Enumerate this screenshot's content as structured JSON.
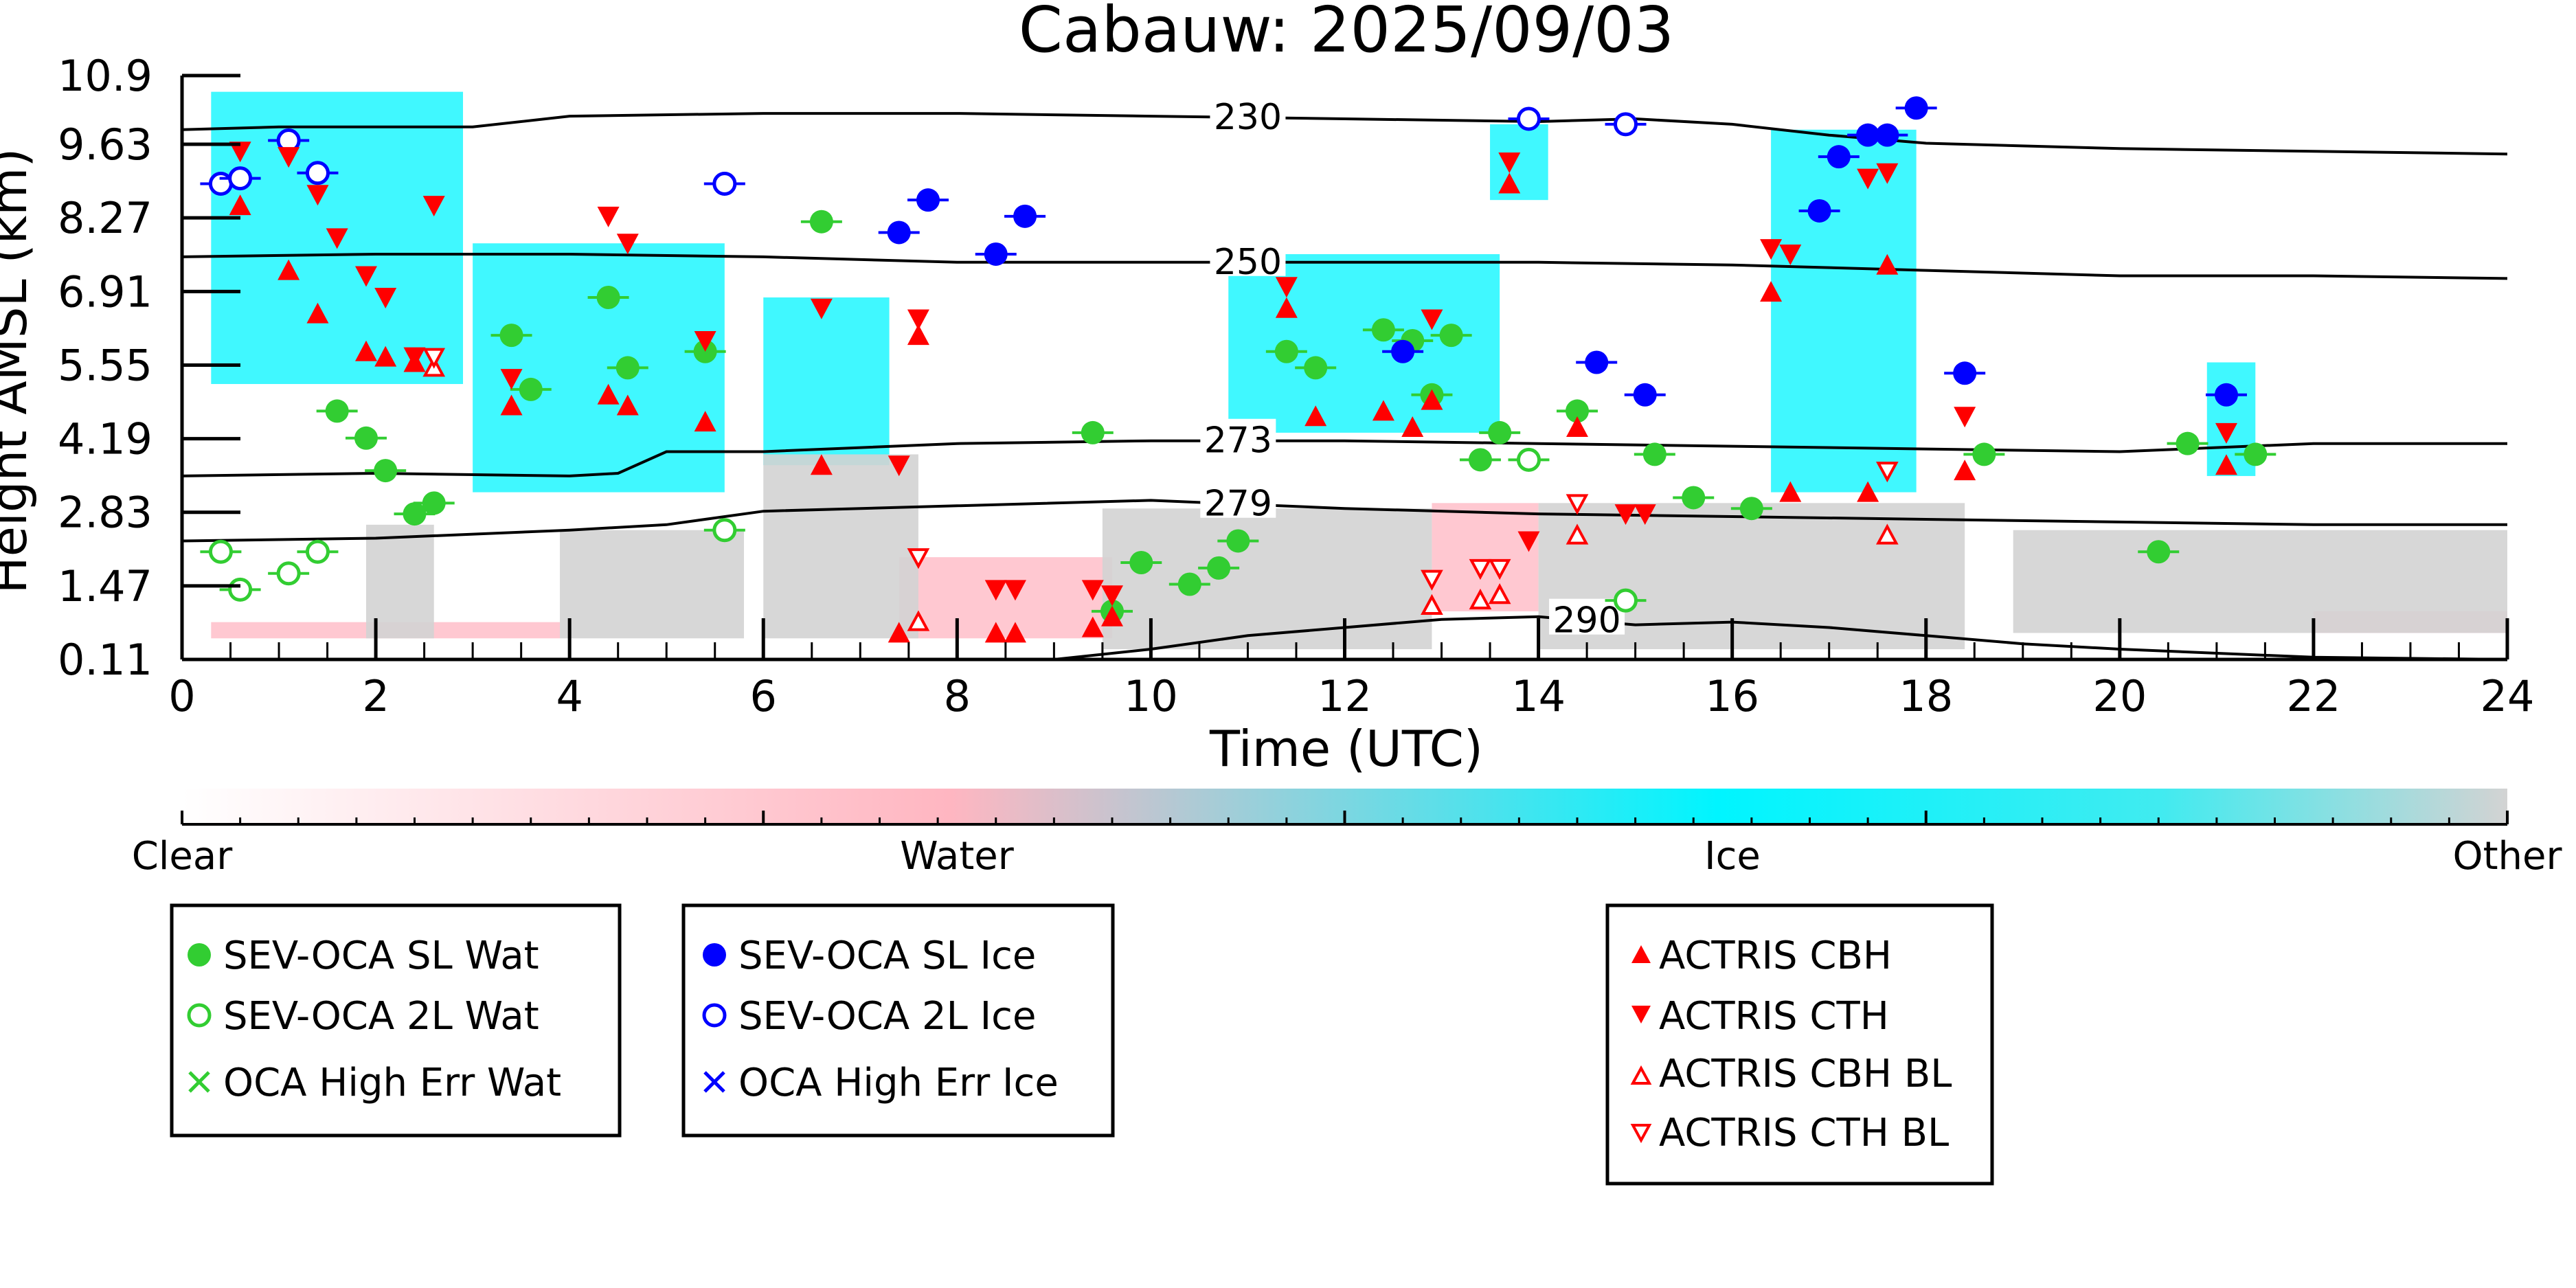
{
  "chart_data": {
    "type": "scatter",
    "title": "Cabauw: 2025/09/03",
    "xlabel": "Time (UTC)",
    "ylabel": "Height AMSL (km)",
    "xlim": [
      0,
      24
    ],
    "ylim": [
      0.11,
      10.9
    ],
    "xticks": [
      0,
      2,
      4,
      6,
      8,
      10,
      12,
      14,
      16,
      18,
      20,
      22,
      24
    ],
    "yticks": [
      "0.11",
      "1.47",
      "2.83",
      "4.19",
      "5.55",
      "6.91",
      "8.27",
      "9.63",
      "10.9"
    ],
    "colorbar": {
      "labels": [
        "Clear",
        "Water",
        "Ice",
        "Other"
      ],
      "colors": [
        "#ffffff",
        "#ffb6c1",
        "#00f5ff",
        "#d3d3d3"
      ]
    },
    "isotherms": [
      {
        "label": "230",
        "x": [
          0,
          1,
          3,
          4,
          6,
          8,
          10,
          12,
          14,
          15,
          16,
          17,
          18,
          20,
          22,
          24
        ],
        "y": [
          9.9,
          9.95,
          9.95,
          10.15,
          10.2,
          10.2,
          10.15,
          10.1,
          10.05,
          10.1,
          10.0,
          9.8,
          9.65,
          9.55,
          9.5,
          9.45
        ]
      },
      {
        "label": "250",
        "x": [
          0,
          2,
          4,
          6,
          8,
          10,
          12,
          14,
          16,
          18,
          20,
          22,
          24
        ],
        "y": [
          7.55,
          7.6,
          7.6,
          7.55,
          7.45,
          7.45,
          7.45,
          7.45,
          7.4,
          7.3,
          7.2,
          7.2,
          7.15
        ]
      },
      {
        "label": "273",
        "x": [
          0,
          2,
          4,
          4.5,
          5,
          6,
          8,
          10,
          12,
          14,
          16,
          18,
          20,
          22,
          24
        ],
        "y": [
          3.5,
          3.55,
          3.5,
          3.55,
          3.95,
          3.95,
          4.1,
          4.15,
          4.15,
          4.1,
          4.05,
          4.0,
          3.95,
          4.1,
          4.1
        ]
      },
      {
        "label": "279",
        "x": [
          0,
          2,
          4,
          5,
          6,
          8,
          10,
          12,
          14,
          16,
          18,
          20,
          22,
          24
        ],
        "y": [
          2.3,
          2.35,
          2.5,
          2.6,
          2.85,
          2.95,
          3.05,
          2.9,
          2.8,
          2.75,
          2.7,
          2.65,
          2.6,
          2.6
        ]
      },
      {
        "label": "290",
        "x": [
          9,
          10,
          11,
          12,
          13,
          14,
          15,
          16,
          17,
          18,
          19,
          20,
          22,
          24
        ],
        "y": [
          0.11,
          0.3,
          0.55,
          0.7,
          0.85,
          0.9,
          0.75,
          0.8,
          0.7,
          0.55,
          0.4,
          0.3,
          0.15,
          0.11
        ]
      }
    ],
    "series": [
      {
        "name": "SEV-OCA SL Wat",
        "marker": "filled-circle",
        "color": "#32cd32",
        "points": [
          [
            1.6,
            4.7
          ],
          [
            1.9,
            4.2
          ],
          [
            2.1,
            3.6
          ],
          [
            2.4,
            2.8
          ],
          [
            2.6,
            3.0
          ],
          [
            3.4,
            6.1
          ],
          [
            3.6,
            5.1
          ],
          [
            4.4,
            6.8
          ],
          [
            4.6,
            5.5
          ],
          [
            5.4,
            5.8
          ],
          [
            6.6,
            8.2
          ],
          [
            9.4,
            4.3
          ],
          [
            9.6,
            1.0
          ],
          [
            9.9,
            1.9
          ],
          [
            10.4,
            1.5
          ],
          [
            10.7,
            1.8
          ],
          [
            10.9,
            2.3
          ],
          [
            11.4,
            5.8
          ],
          [
            11.7,
            5.5
          ],
          [
            12.4,
            6.2
          ],
          [
            12.7,
            6.0
          ],
          [
            12.9,
            5.0
          ],
          [
            13.1,
            6.1
          ],
          [
            13.4,
            3.8
          ],
          [
            13.6,
            4.3
          ],
          [
            14.4,
            4.7
          ],
          [
            15.2,
            3.9
          ],
          [
            15.6,
            3.1
          ],
          [
            16.2,
            2.9
          ],
          [
            18.6,
            3.9
          ],
          [
            20.4,
            2.1
          ],
          [
            20.7,
            4.1
          ],
          [
            21.4,
            3.9
          ]
        ]
      },
      {
        "name": "SEV-OCA 2L Wat",
        "marker": "open-circle",
        "color": "#32cd32",
        "points": [
          [
            0.4,
            2.1
          ],
          [
            0.6,
            1.4
          ],
          [
            1.1,
            1.7
          ],
          [
            1.4,
            2.1
          ],
          [
            5.6,
            2.5
          ],
          [
            13.9,
            3.8
          ],
          [
            14.9,
            1.2
          ]
        ]
      },
      {
        "name": "OCA High Err Wat",
        "marker": "x",
        "color": "#32cd32",
        "points": []
      },
      {
        "name": "SEV-OCA SL Ice",
        "marker": "filled-circle",
        "color": "#0000ff",
        "points": [
          [
            7.4,
            8.0
          ],
          [
            7.7,
            8.6
          ],
          [
            8.4,
            7.6
          ],
          [
            8.7,
            8.3
          ],
          [
            12.6,
            5.8
          ],
          [
            14.6,
            5.6
          ],
          [
            15.1,
            5.0
          ],
          [
            16.9,
            8.4
          ],
          [
            17.1,
            9.4
          ],
          [
            17.4,
            9.8
          ],
          [
            17.6,
            9.8
          ],
          [
            17.9,
            10.3
          ],
          [
            18.4,
            5.4
          ],
          [
            21.1,
            5.0
          ]
        ]
      },
      {
        "name": "SEV-OCA 2L Ice",
        "marker": "open-circle",
        "color": "#0000ff",
        "points": [
          [
            0.4,
            8.9
          ],
          [
            0.6,
            9.0
          ],
          [
            1.1,
            9.7
          ],
          [
            1.4,
            9.1
          ],
          [
            5.6,
            8.9
          ],
          [
            13.9,
            10.1
          ],
          [
            14.9,
            10.0
          ]
        ]
      },
      {
        "name": "OCA High Err Ice",
        "marker": "x",
        "color": "#0000ff",
        "points": []
      },
      {
        "name": "ACTRIS CBH",
        "marker": "filled-triangle-up",
        "color": "#ff0000",
        "points": [
          [
            0.6,
            8.5
          ],
          [
            1.1,
            7.3
          ],
          [
            1.4,
            6.5
          ],
          [
            1.9,
            5.8
          ],
          [
            2.1,
            5.7
          ],
          [
            2.4,
            5.6
          ],
          [
            3.4,
            4.8
          ],
          [
            4.4,
            5.0
          ],
          [
            4.6,
            4.8
          ],
          [
            5.4,
            4.5
          ],
          [
            6.6,
            3.7
          ],
          [
            7.6,
            6.1
          ],
          [
            8.4,
            0.6
          ],
          [
            8.6,
            0.6
          ],
          [
            7.4,
            0.6
          ],
          [
            9.4,
            0.7
          ],
          [
            9.6,
            0.9
          ],
          [
            11.4,
            6.6
          ],
          [
            11.7,
            4.6
          ],
          [
            12.4,
            4.7
          ],
          [
            12.7,
            4.4
          ],
          [
            12.9,
            4.9
          ],
          [
            13.7,
            8.9
          ],
          [
            14.4,
            4.4
          ],
          [
            16.4,
            6.9
          ],
          [
            16.6,
            3.2
          ],
          [
            17.4,
            3.2
          ],
          [
            17.6,
            7.4
          ],
          [
            18.4,
            3.6
          ],
          [
            21.1,
            3.7
          ]
        ]
      },
      {
        "name": "ACTRIS CTH",
        "marker": "filled-triangle-down",
        "color": "#ff0000",
        "points": [
          [
            0.6,
            9.5
          ],
          [
            1.1,
            9.4
          ],
          [
            1.4,
            8.7
          ],
          [
            1.6,
            7.9
          ],
          [
            1.9,
            7.2
          ],
          [
            2.1,
            6.8
          ],
          [
            2.4,
            5.7
          ],
          [
            2.6,
            8.5
          ],
          [
            3.4,
            5.3
          ],
          [
            4.4,
            8.3
          ],
          [
            4.6,
            7.8
          ],
          [
            5.4,
            6.0
          ],
          [
            6.6,
            6.6
          ],
          [
            7.4,
            3.7
          ],
          [
            7.6,
            6.4
          ],
          [
            8.4,
            1.4
          ],
          [
            8.6,
            1.4
          ],
          [
            9.4,
            1.4
          ],
          [
            9.6,
            1.3
          ],
          [
            11.4,
            7.0
          ],
          [
            12.9,
            6.4
          ],
          [
            13.7,
            9.3
          ],
          [
            13.9,
            2.3
          ],
          [
            14.9,
            2.8
          ],
          [
            15.1,
            2.8
          ],
          [
            16.4,
            7.7
          ],
          [
            16.6,
            7.6
          ],
          [
            17.4,
            9.0
          ],
          [
            17.6,
            9.1
          ],
          [
            18.4,
            4.6
          ],
          [
            21.1,
            4.3
          ]
        ]
      },
      {
        "name": "ACTRIS CBH BL",
        "marker": "open-triangle-up",
        "color": "#ff0000",
        "points": [
          [
            2.6,
            5.5
          ],
          [
            7.6,
            0.8
          ],
          [
            12.9,
            1.1
          ],
          [
            13.4,
            1.2
          ],
          [
            13.6,
            1.3
          ],
          [
            14.4,
            2.4
          ],
          [
            17.6,
            2.4
          ]
        ]
      },
      {
        "name": "ACTRIS CTH BL",
        "marker": "open-triangle-down",
        "color": "#ff0000",
        "points": [
          [
            2.6,
            5.7
          ],
          [
            7.6,
            2.0
          ],
          [
            12.9,
            1.6
          ],
          [
            13.4,
            1.8
          ],
          [
            13.6,
            1.8
          ],
          [
            14.4,
            3.0
          ],
          [
            17.6,
            3.6
          ]
        ]
      }
    ],
    "legend_boxes": [
      [
        "SEV-OCA SL Wat",
        "SEV-OCA 2L Wat",
        "OCA High Err Wat"
      ],
      [
        "SEV-OCA SL Ice",
        "SEV-OCA 2L Ice",
        "OCA High Err Ice"
      ],
      [
        "ACTRIS CBH",
        "ACTRIS CTH",
        "ACTRIS CBH BL",
        "ACTRIS CTH BL"
      ]
    ],
    "background_cloud_mask": [
      {
        "class": "Ice",
        "x": [
          0.3,
          2.9
        ],
        "y": [
          5.2,
          10.6
        ],
        "color": "#00f5ff"
      },
      {
        "class": "Ice",
        "x": [
          3.0,
          5.6
        ],
        "y": [
          3.2,
          7.8
        ],
        "color": "#00f5ff"
      },
      {
        "class": "Ice",
        "x": [
          6.0,
          7.3
        ],
        "y": [
          3.7,
          6.8
        ],
        "color": "#00f5ff"
      },
      {
        "class": "Ice",
        "x": [
          10.8,
          13.6
        ],
        "y": [
          4.3,
          7.6
        ],
        "color": "#00f5ff"
      },
      {
        "class": "Ice",
        "x": [
          13.5,
          14.1
        ],
        "y": [
          8.6,
          10.0
        ],
        "color": "#00f5ff"
      },
      {
        "class": "Ice",
        "x": [
          16.4,
          17.9
        ],
        "y": [
          3.2,
          9.9
        ],
        "color": "#00f5ff"
      },
      {
        "class": "Ice",
        "x": [
          20.9,
          21.4
        ],
        "y": [
          3.5,
          5.6
        ],
        "color": "#00f5ff"
      },
      {
        "class": "Water",
        "x": [
          0.3,
          3.9
        ],
        "y": [
          0.5,
          0.8
        ],
        "color": "#ffb6c1"
      },
      {
        "class": "Water",
        "x": [
          7.4,
          9.6
        ],
        "y": [
          0.5,
          2.0
        ],
        "color": "#ffb6c1"
      },
      {
        "class": "Water",
        "x": [
          12.9,
          14.0
        ],
        "y": [
          1.0,
          3.0
        ],
        "color": "#ffb6c1"
      },
      {
        "class": "Water",
        "x": [
          22.0,
          24.0
        ],
        "y": [
          0.6,
          1.0
        ],
        "color": "#ffb6c1"
      },
      {
        "class": "Other",
        "x": [
          1.9,
          2.6
        ],
        "y": [
          0.5,
          2.6
        ],
        "color": "#d3d3d3"
      },
      {
        "class": "Other",
        "x": [
          3.9,
          5.8
        ],
        "y": [
          0.5,
          2.5
        ],
        "color": "#d3d3d3"
      },
      {
        "class": "Other",
        "x": [
          6.0,
          7.6
        ],
        "y": [
          0.5,
          3.9
        ],
        "color": "#d3d3d3"
      },
      {
        "class": "Other",
        "x": [
          9.5,
          12.9
        ],
        "y": [
          0.3,
          2.9
        ],
        "color": "#d3d3d3"
      },
      {
        "class": "Other",
        "x": [
          14.0,
          18.4
        ],
        "y": [
          0.3,
          3.0
        ],
        "color": "#d3d3d3"
      },
      {
        "class": "Other",
        "x": [
          18.9,
          24.0
        ],
        "y": [
          0.6,
          2.5
        ],
        "color": "#d3d3d3"
      }
    ]
  }
}
